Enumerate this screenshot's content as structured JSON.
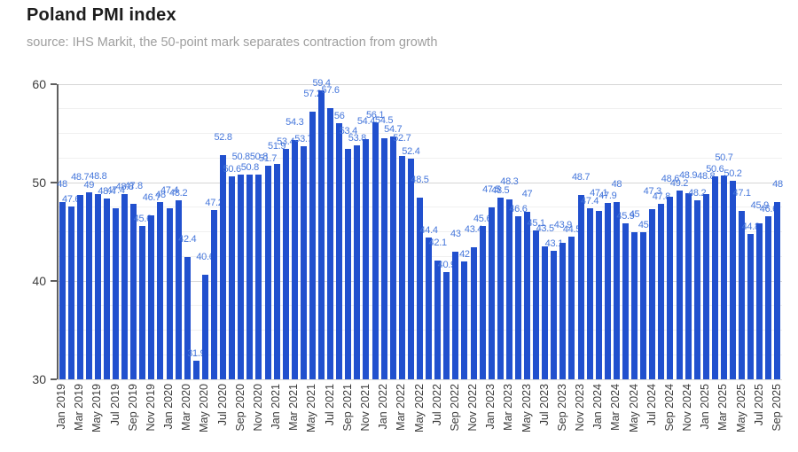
{
  "header": {
    "title": "Poland PMI index",
    "subtitle": "source: IHS Markit, the 50-point mark separates contraction from growth"
  },
  "chart_data": {
    "type": "bar",
    "title": "Poland PMI index",
    "subtitle": "source: IHS Markit, the 50-point mark separates contraction from growth",
    "xlabel": "",
    "ylabel": "",
    "ylim": [
      30,
      60
    ],
    "y_ticks": [
      30,
      40,
      50,
      60
    ],
    "x_tick_every": 2,
    "grid": true,
    "legend": "none",
    "annotations": "value labels above bars",
    "bar_color": "#2150ce",
    "label_color": "#4677db",
    "axis_color": "#5f5f5f",
    "major_grid_color": "#d6d6d6",
    "minor_grid_color": "#f0f0f0",
    "categories": [
      "Jan 2019",
      "Feb 2019",
      "Mar 2019",
      "Apr 2019",
      "May 2019",
      "Jun 2019",
      "Jul 2019",
      "Aug 2019",
      "Sep 2019",
      "Oct 2019",
      "Nov 2019",
      "Dec 2019",
      "Jan 2020",
      "Feb 2020",
      "Mar 2020",
      "Apr 2020",
      "May 2020",
      "Jun 2020",
      "Jul 2020",
      "Aug 2020",
      "Sep 2020",
      "Oct 2020",
      "Nov 2020",
      "Dec 2020",
      "Jan 2021",
      "Feb 2021",
      "Mar 2021",
      "Apr 2021",
      "May 2021",
      "Jun 2021",
      "Jul 2021",
      "Aug 2021",
      "Sep 2021",
      "Oct 2021",
      "Nov 2021",
      "Dec 2021",
      "Jan 2022",
      "Feb 2022",
      "Mar 2022",
      "Apr 2022",
      "May 2022",
      "Jun 2022",
      "Jul 2022",
      "Aug 2022",
      "Sep 2022",
      "Oct 2022",
      "Nov 2022",
      "Dec 2022",
      "Jan 2023",
      "Feb 2023",
      "Mar 2023",
      "Apr 2023",
      "May 2023",
      "Jun 2023",
      "Jul 2023",
      "Aug 2023",
      "Sep 2023",
      "Oct 2023",
      "Nov 2023",
      "Dec 2023",
      "Jan 2024",
      "Feb 2024",
      "Mar 2024",
      "Apr 2024",
      "May 2024",
      "Jun 2024",
      "Jul 2024",
      "Aug 2024",
      "Sep 2024",
      "Oct 2024",
      "Nov 2024",
      "Dec 2024",
      "Jan 2025",
      "Feb 2025",
      "Mar 2025",
      "Apr 2025",
      "May 2025",
      "Jun 2025",
      "Jul 2025",
      "Aug 2025",
      "Sep 2025"
    ],
    "values": [
      48,
      47.6,
      48.7,
      49,
      48.8,
      48.4,
      47.4,
      48.8,
      47.8,
      45.6,
      46.7,
      48,
      47.4,
      48.2,
      42.4,
      31.9,
      40.6,
      47.2,
      52.8,
      50.6,
      50.8,
      50.8,
      50.8,
      51.7,
      51.9,
      53.4,
      54.3,
      53.7,
      57.2,
      59.4,
      57.6,
      56,
      53.4,
      53.8,
      54.4,
      56.1,
      54.5,
      54.7,
      52.7,
      52.4,
      48.5,
      44.4,
      42.1,
      40.9,
      43,
      42,
      43.4,
      45.6,
      47.5,
      48.5,
      48.3,
      46.6,
      47,
      45.1,
      43.5,
      43.1,
      43.9,
      44.5,
      48.7,
      47.4,
      47.1,
      47.9,
      48,
      45.9,
      45,
      45,
      47.3,
      47.8,
      48.6,
      49.2,
      48.9,
      48.2,
      48.8,
      50.6,
      50.7,
      50.2,
      47.1,
      44.8,
      45.9,
      46.6,
      48
    ]
  }
}
